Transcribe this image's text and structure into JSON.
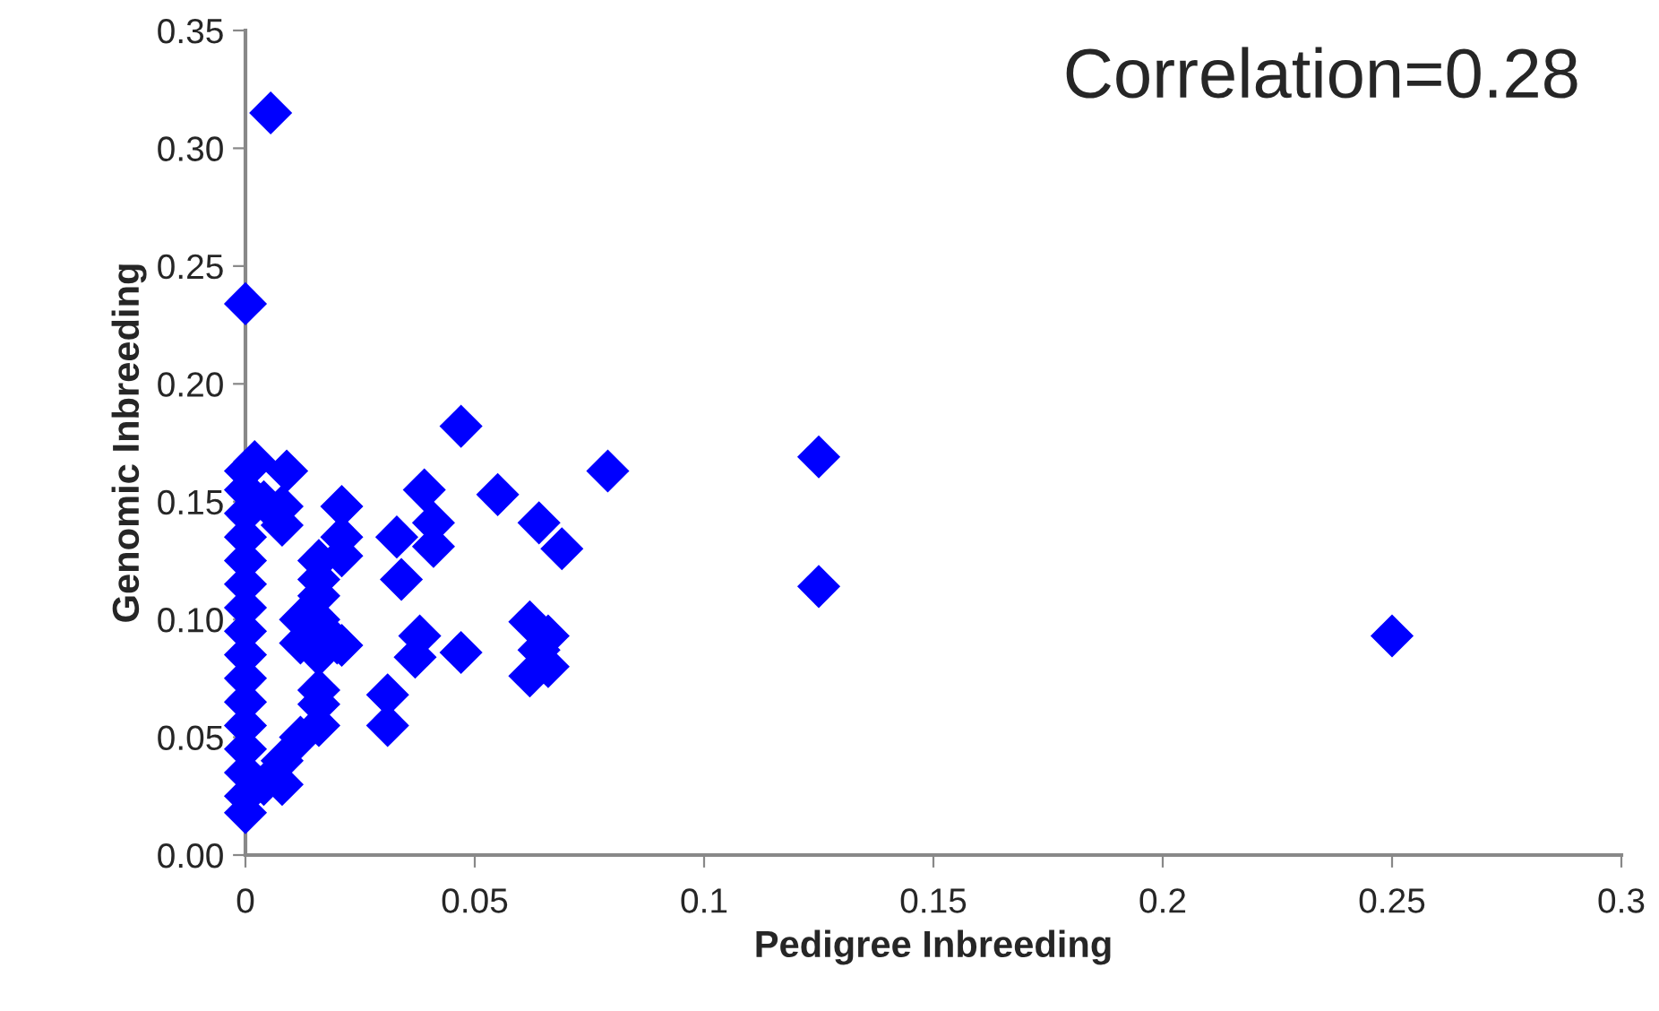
{
  "chart_data": {
    "type": "scatter",
    "xlabel": "Pedigree Inbreeding",
    "ylabel": "Genomic Inbreeding",
    "annotations": [
      "Correlation=0.28"
    ],
    "xlim": [
      0,
      0.3
    ],
    "xticks": [
      0,
      0.05,
      0.1,
      0.15,
      0.2,
      0.25,
      0.3
    ],
    "ylim": [
      0,
      0.35
    ],
    "yticks": [
      {
        "value": 0,
        "label": "0.00"
      },
      {
        "value": 0.05,
        "label": "0.05"
      },
      {
        "value": 0.1,
        "label": "0.10"
      },
      {
        "value": 0.15,
        "label": "0.15"
      },
      {
        "value": 0.2,
        "label": "0.20"
      },
      {
        "value": 0.25,
        "label": "0.25"
      },
      {
        "value": 0.3,
        "label": "0.30"
      },
      {
        "value": 0.35,
        "label": "0.35"
      }
    ],
    "grid": false,
    "legend": false,
    "marker": "diamond",
    "series": [
      {
        "color": "#0000ff",
        "x": [
          0.25,
          0.125,
          0.125,
          0.079,
          0.047,
          0.055,
          0.064,
          0.069,
          0.062,
          0.062,
          0.066,
          0.066,
          0.064,
          0.047,
          0.039,
          0.041,
          0.041,
          0.038,
          0.037,
          0.033,
          0.034,
          0.031,
          0.031,
          0.0055,
          0,
          0.008,
          0.021,
          0.021,
          0.021,
          0.021,
          0.002,
          0.009,
          0.008,
          0.016,
          0.02,
          0.016,
          0,
          0,
          0,
          0,
          0,
          0,
          0,
          0,
          0,
          0,
          0,
          0,
          0,
          0,
          0,
          0,
          0.004,
          0.004,
          0.008,
          0.008,
          0.012,
          0.012,
          0.012,
          0.016,
          0.016,
          0.016,
          0.016,
          0.016,
          0.016
        ],
        "values": [
          0.093,
          0.169,
          0.114,
          0.163,
          0.182,
          0.153,
          0.141,
          0.13,
          0.099,
          0.076,
          0.093,
          0.08,
          0.087,
          0.086,
          0.155,
          0.141,
          0.131,
          0.093,
          0.084,
          0.135,
          0.117,
          0.068,
          0.055,
          0.315,
          0.234,
          0.03,
          0.148,
          0.135,
          0.127,
          0.089,
          0.167,
          0.163,
          0.148,
          0.117,
          0.09,
          0.064,
          0.018,
          0.025,
          0.035,
          0.045,
          0.055,
          0.065,
          0.075,
          0.085,
          0.095,
          0.105,
          0.115,
          0.125,
          0.135,
          0.145,
          0.155,
          0.163,
          0.03,
          0.15,
          0.04,
          0.14,
          0.05,
          0.09,
          0.1,
          0.055,
          0.07,
          0.085,
          0.1,
          0.11,
          0.125
        ]
      }
    ]
  }
}
